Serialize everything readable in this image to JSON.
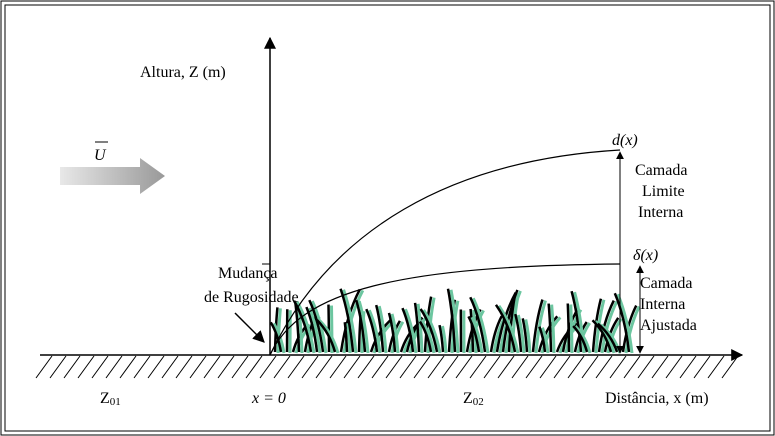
{
  "axes": {
    "y_label": "Altura, Z (m)",
    "x_label": "Distância, x (m)",
    "origin": "x = 0"
  },
  "wind": {
    "symbol": "U"
  },
  "curves": {
    "outer": {
      "label": "d(x)",
      "description": [
        "Camada",
        "Limite",
        "Interna"
      ]
    },
    "inner": {
      "label": "δ(x)",
      "description": [
        "Camada",
        "Interna",
        "Ajustada"
      ]
    }
  },
  "roughness_change": [
    "Mudança",
    "de Rugosidade"
  ],
  "surfaces": {
    "upstream": {
      "base": "Z",
      "sub": "01"
    },
    "downstream": {
      "base": "Z",
      "sub": "02"
    }
  }
}
